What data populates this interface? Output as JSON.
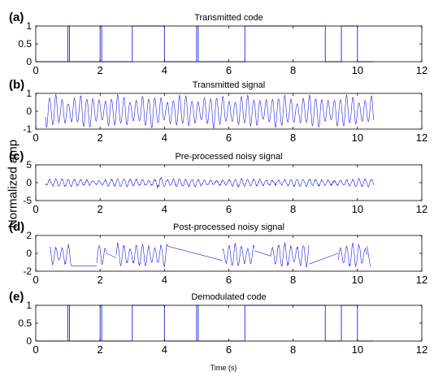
{
  "ylabel": "Normalized amp",
  "xlabel": "Time (s)",
  "chart_data": [
    {
      "type": "line",
      "panel": "(a)",
      "title": "Transmitted code",
      "xlim": [
        0,
        12
      ],
      "ylim": [
        0,
        1
      ],
      "xticks": [
        0,
        2,
        4,
        6,
        8,
        10,
        12
      ],
      "yticks": [
        0,
        0.5,
        1
      ],
      "ytick_labels": [
        "0",
        "0.5",
        "1"
      ],
      "grid": false,
      "bit_edges": [
        1,
        2,
        3,
        4,
        5,
        6.5,
        7,
        9,
        9.5,
        10
      ],
      "series": [
        {
          "values": [
            [
              0,
              0
            ],
            [
              1,
              0
            ],
            [
              1,
              1
            ],
            [
              1.05,
              1
            ],
            [
              1.05,
              0
            ],
            [
              2,
              0
            ],
            [
              2,
              1
            ],
            [
              2.05,
              1
            ],
            [
              2.05,
              0
            ],
            [
              3,
              0
            ],
            [
              3,
              1
            ],
            [
              4,
              1
            ],
            [
              4,
              0
            ],
            [
              5,
              0
            ],
            [
              5,
              1
            ],
            [
              5.05,
              1
            ],
            [
              5.05,
              0
            ],
            [
              6.5,
              0
            ],
            [
              6.5,
              1
            ],
            [
              7,
              1
            ],
            [
              9,
              1
            ],
            [
              9,
              0
            ],
            [
              9.5,
              0
            ],
            [
              9.5,
              1
            ],
            [
              10,
              1
            ],
            [
              10,
              0
            ],
            [
              10.5,
              0
            ]
          ]
        }
      ]
    },
    {
      "type": "line",
      "panel": "(b)",
      "title": "Transmitted signal",
      "xlim": [
        0,
        12
      ],
      "ylim": [
        -1,
        1
      ],
      "xticks": [
        0,
        2,
        4,
        6,
        8,
        10,
        12
      ],
      "yticks": [
        -1,
        0,
        1
      ],
      "ytick_labels": [
        "-1",
        "0",
        "1"
      ],
      "grid": false,
      "signal_span": [
        0.3,
        10.5
      ],
      "amplitude": 0.95
    },
    {
      "type": "line",
      "panel": "(c)",
      "title": "Pre-processed noisy signal",
      "xlim": [
        0,
        12
      ],
      "ylim": [
        -5,
        5
      ],
      "xticks": [
        0,
        2,
        4,
        6,
        8,
        10,
        12
      ],
      "yticks": [
        -5,
        0,
        5
      ],
      "ytick_labels": [
        "-5",
        "0",
        "5"
      ],
      "grid": false,
      "signal_span": [
        0.3,
        10.5
      ],
      "amplitude": 1.0,
      "peak": {
        "x": 3.8,
        "y": 2.2
      }
    },
    {
      "type": "line",
      "panel": "(d)",
      "title": "Post-processed noisy signal",
      "xlim": [
        0,
        12
      ],
      "ylim": [
        -2,
        2
      ],
      "xticks": [
        0,
        2,
        4,
        6,
        8,
        10,
        12
      ],
      "yticks": [
        -2,
        0,
        2
      ],
      "ytick_labels": [
        "-2",
        "0",
        "2"
      ],
      "grid": false,
      "segments": [
        {
          "x0": 0.45,
          "x1": 1.1,
          "amp": 1.3
        },
        {
          "x0": 1.9,
          "x1": 2.2,
          "amp": 1.4
        },
        {
          "x0": 2.5,
          "x1": 4.1,
          "amp": 1.4
        },
        {
          "x0": 5.8,
          "x1": 6.8,
          "amp": 1.4
        },
        {
          "x0": 7.3,
          "x1": 8.5,
          "amp": 1.5
        },
        {
          "x0": 9.4,
          "x1": 10.3,
          "amp": 1.5
        }
      ],
      "links": [
        [
          [
            1.1,
            -1.4
          ],
          [
            1.9,
            -1.4
          ]
        ],
        [
          [
            2.2,
            0.0
          ],
          [
            2.5,
            -0.5
          ]
        ],
        [
          [
            4.1,
            0.8
          ],
          [
            5.8,
            -0.8
          ]
        ],
        [
          [
            6.8,
            0.3
          ],
          [
            7.3,
            -0.3
          ]
        ],
        [
          [
            8.5,
            -1.2
          ],
          [
            9.4,
            0.0
          ]
        ],
        [
          [
            10.3,
            0.8
          ],
          [
            10.4,
            -1.5
          ]
        ]
      ]
    },
    {
      "type": "line",
      "panel": "(e)",
      "title": "Demodulated code",
      "xlim": [
        0,
        12
      ],
      "ylim": [
        0,
        1
      ],
      "xticks": [
        0,
        2,
        4,
        6,
        8,
        10,
        12
      ],
      "yticks": [
        0,
        0.5,
        1
      ],
      "ytick_labels": [
        "0",
        "0.5",
        "1"
      ],
      "grid": false,
      "bit_edges": [
        1,
        2,
        3,
        4,
        5,
        6.5,
        7,
        9,
        9.5,
        10
      ],
      "series": [
        {
          "values": [
            [
              0,
              0
            ],
            [
              1,
              0
            ],
            [
              1,
              1
            ],
            [
              1.05,
              1
            ],
            [
              1.05,
              0
            ],
            [
              2,
              0
            ],
            [
              2,
              1
            ],
            [
              2.05,
              1
            ],
            [
              2.05,
              0
            ],
            [
              3,
              0
            ],
            [
              3,
              1
            ],
            [
              4,
              1
            ],
            [
              4,
              0
            ],
            [
              5,
              0
            ],
            [
              5,
              1
            ],
            [
              5.05,
              1
            ],
            [
              5.05,
              0
            ],
            [
              6.5,
              0
            ],
            [
              6.5,
              1
            ],
            [
              7,
              1
            ],
            [
              9,
              1
            ],
            [
              9,
              0
            ],
            [
              9.5,
              0
            ],
            [
              9.5,
              1
            ],
            [
              10,
              1
            ],
            [
              10,
              0
            ],
            [
              10.5,
              0
            ]
          ]
        }
      ]
    }
  ],
  "colors": {
    "line": "#2020e0",
    "axis": "#000000"
  }
}
